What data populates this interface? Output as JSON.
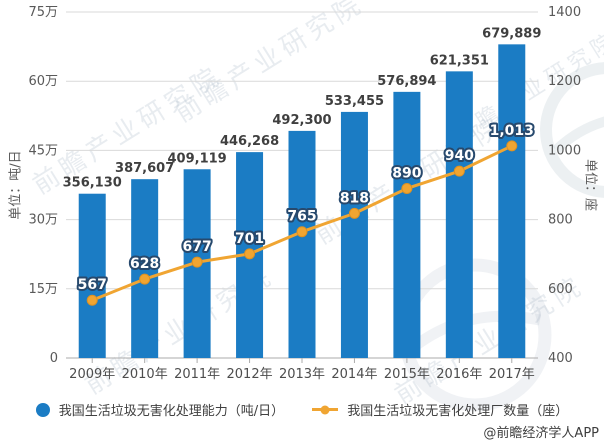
{
  "chart_data": {
    "type": "combo: bar + line",
    "categories": [
      "2009年",
      "2010年",
      "2011年",
      "2012年",
      "2013年",
      "2014年",
      "2015年",
      "2016年",
      "2017年"
    ],
    "series": [
      {
        "name": "我国生活垃圾无害化处理能力（吨/日）",
        "chart_type": "bar",
        "axis": "left",
        "color": "#1b7cc4",
        "values": [
          356130,
          387607,
          409119,
          446268,
          492300,
          533455,
          576894,
          621351,
          679889
        ],
        "labels": [
          "356,130",
          "387,607",
          "409,119",
          "446,268",
          "492,300",
          "533,455",
          "576,894",
          "621,351",
          "679,889"
        ]
      },
      {
        "name": "我国生活垃圾无害化处理厂数量（座）",
        "chart_type": "line",
        "axis": "right",
        "color": "#f0a532",
        "marker_stroke": "#dd9122",
        "label_outline": "#27496d",
        "values": [
          567,
          628,
          677,
          701,
          765,
          818,
          890,
          940,
          1013
        ],
        "labels": [
          "567",
          "628",
          "677",
          "701",
          "765",
          "818",
          "890",
          "940",
          "1,013"
        ]
      }
    ],
    "left_axis": {
      "title": "单位：吨/日",
      "min": 0,
      "max": 750000,
      "ticks": [
        "0",
        "15万",
        "30万",
        "45万",
        "60万",
        "75万"
      ]
    },
    "right_axis": {
      "title": "单位：座",
      "min": 400,
      "max": 1400,
      "ticks": [
        "400",
        "600",
        "800",
        "1000",
        "1200",
        "1400"
      ]
    },
    "grid": true,
    "legend_position": "bottom"
  },
  "watermark": {
    "text": "前瞻产业研究院"
  },
  "footer": {
    "credit": "@前瞻经济学人APP"
  }
}
